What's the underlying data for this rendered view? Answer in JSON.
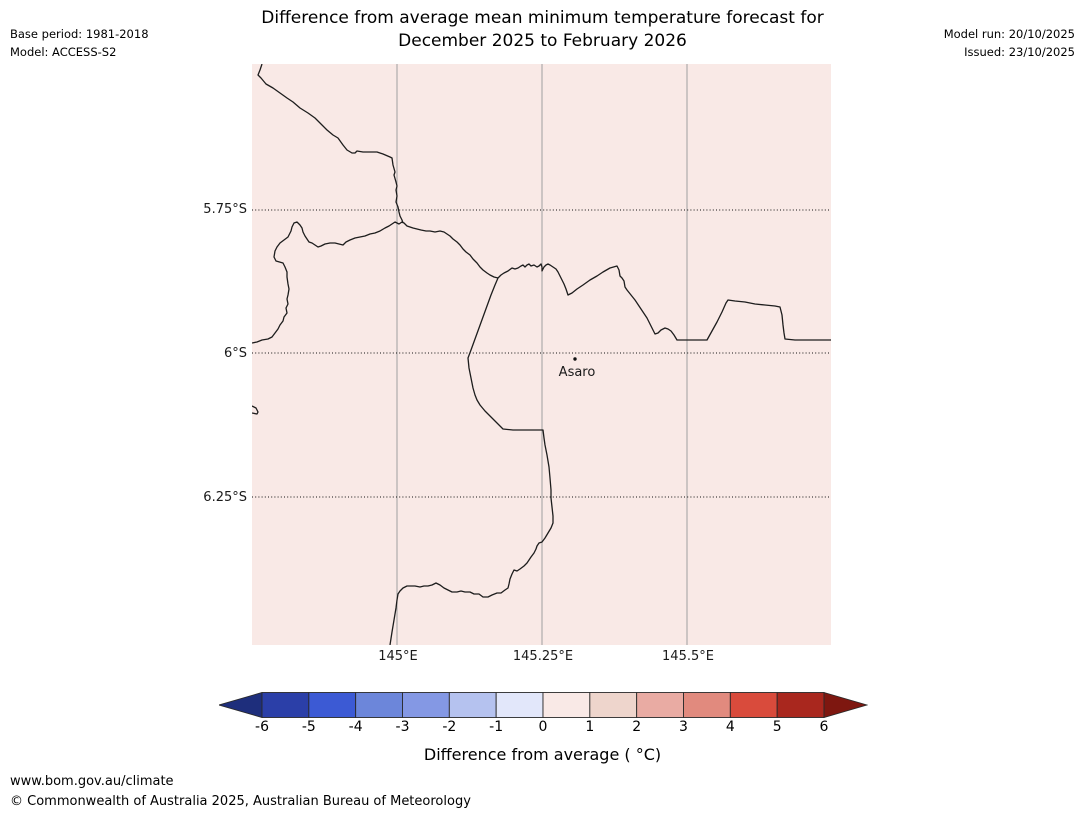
{
  "header": {
    "title_line1": "Difference from average mean minimum temperature forecast for",
    "title_line2": "December 2025 to February 2026",
    "base_period": "Base period: 1981-2018",
    "model": "Model: ACCESS-S2",
    "model_run": "Model run: 20/10/2025",
    "issued": "Issued: 23/10/2025"
  },
  "map": {
    "place": {
      "name": "Asaro"
    },
    "lat_ticks": [
      "5.75°S",
      "6°S",
      "6.25°S"
    ],
    "lon_ticks": [
      "145°E",
      "145.25°E",
      "145.5°E"
    ],
    "background_color": "#f9e9e6",
    "gridline_color": "#a0a0a0",
    "graticule_dot_color": "#111111",
    "border_color": "#1d1d1d",
    "marker_color": "#111111"
  },
  "colorbar": {
    "label": "Difference from average ( °C)",
    "ticks": [
      "-6",
      "-5",
      "-4",
      "-3",
      "-2",
      "-1",
      "0",
      "1",
      "2",
      "3",
      "4",
      "5",
      "6"
    ],
    "segment_colors": [
      "#2b3fa8",
      "#3c5ad4",
      "#6c86da",
      "#8498e4",
      "#b5c2ef",
      "#e2e7fa",
      "#f9e9e6",
      "#eed5cc",
      "#e9aba3",
      "#e18a7e",
      "#d94b3c",
      "#a9271e"
    ],
    "arrow_left_color": "#1e2e7c",
    "arrow_right_color": "#7e1710",
    "outline_color": "#2a2a2a"
  },
  "footer": {
    "url": "www.bom.gov.au/climate",
    "copyright": "© Commonwealth of Australia 2025, Australian Bureau of Meteorology"
  },
  "chart_data": {
    "type": "heatmap",
    "title": "Difference from average mean minimum temperature forecast for December 2025 to February 2026",
    "scale_label": "Difference from average (°C)",
    "scale_ticks": [
      -6,
      -5,
      -4,
      -3,
      -2,
      -1,
      0,
      1,
      2,
      3,
      4,
      5,
      6
    ],
    "lat_gridlines": [
      "5.75°S",
      "6°S",
      "6.25°S"
    ],
    "lon_gridlines": [
      "145°E",
      "145.25°E",
      "145.5°E"
    ],
    "labelled_places": [
      "Asaro"
    ],
    "shaded_anomaly_band_degC": [
      0,
      1
    ]
  }
}
